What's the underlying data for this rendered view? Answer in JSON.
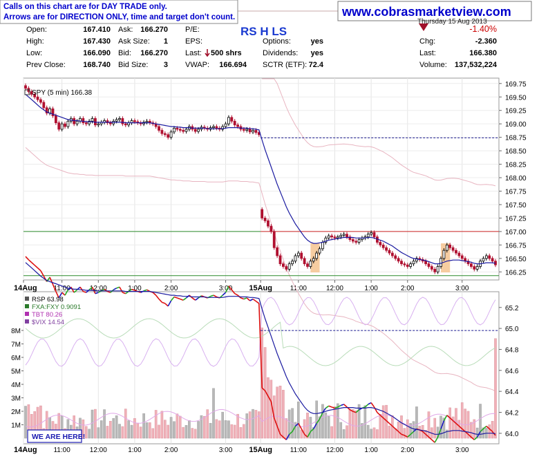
{
  "notice": {
    "line1": "Calls on this chart are for DAY TRADE only.",
    "line2": "Arrows are for DIRECTION ONLY, time and target don't count."
  },
  "website": "www.cobrasmarketview.com",
  "symbol_header": "RS H LS",
  "date_fragment": "Thursday 15 Aug 2013",
  "quote": {
    "open_label": "Open:",
    "open": "167.410",
    "high_label": "High:",
    "high": "167.430",
    "low_label": "Low:",
    "low": "166.090",
    "prev_close_label": "Prev Close:",
    "prev_close": "168.740",
    "ask_label": "Ask:",
    "ask": "166.270",
    "ask_size_label": "Ask Size:",
    "ask_size": "1",
    "bid_label": "Bid:",
    "bid": "166.270",
    "bid_size_label": "Bid Size:",
    "bid_size": "3",
    "pe_label": "P/E:",
    "pe": "",
    "eps_label": "EPS:",
    "eps": "",
    "last_label": "Last:",
    "last_shares": "500 shrs",
    "vwap_label": "VWAP:",
    "vwap": "166.694",
    "options_label": "Options:",
    "options": "yes",
    "dividends_label": "Dividends:",
    "dividends": "yes",
    "sctr_label": "SCTR (ETF):",
    "sctr": "72.4",
    "pct_change": "-1.40%",
    "chg_label": "Chg:",
    "chg": "-2.360",
    "last2_label": "Last:",
    "last2": "166.380",
    "volume_label": "Volume:",
    "volume": "137,532,224"
  },
  "colors": {
    "down_arrow": "#a0102a",
    "up_candle": "#000000",
    "down_candle": "#b01030",
    "ma": "#1a1aa0",
    "band": "#e8b4c0",
    "green_line": "#2a8a2a",
    "red_line": "#cc2222",
    "highlight": "#f5c08a"
  },
  "chart_data": [
    {
      "type": "candlestick",
      "legend": "SPY (5 min) 166.38",
      "interval": "5 min",
      "x_labels": [
        "14Aug",
        "11:00",
        "12:00",
        "1:00",
        "2:00",
        "3:00",
        "15Aug",
        "11:00",
        "12:00",
        "1:00",
        "2:00",
        "3:00"
      ],
      "y_ticks": [
        "169.75",
        "169.50",
        "169.25",
        "169.00",
        "168.75",
        "168.50",
        "168.25",
        "168.00",
        "167.75",
        "167.50",
        "167.25",
        "167.00",
        "166.75",
        "166.50",
        "166.25"
      ],
      "ylim": [
        166.1,
        169.85
      ],
      "session_break_index": 78,
      "close": [
        169.66,
        169.6,
        169.55,
        169.5,
        169.45,
        169.4,
        169.3,
        169.2,
        169.28,
        169.15,
        169.02,
        168.9,
        169.0,
        168.95,
        169.05,
        169.1,
        169.0,
        169.05,
        169.1,
        169.02,
        169.0,
        169.05,
        169.1,
        168.98,
        169.0,
        169.03,
        169.06,
        169.02,
        169.0,
        169.05,
        169.08,
        169.1,
        169.0,
        168.98,
        169.02,
        169.06,
        169.04,
        169.02,
        169.0,
        169.03,
        169.05,
        169.02,
        169.0,
        168.95,
        168.88,
        168.82,
        168.8,
        168.75,
        168.85,
        168.92,
        168.9,
        168.88,
        168.86,
        168.9,
        168.95,
        168.9,
        168.86,
        168.9,
        168.94,
        168.92,
        168.9,
        168.93,
        168.95,
        168.92,
        168.9,
        168.95,
        169.0,
        169.12,
        169.05,
        168.98,
        168.95,
        168.9,
        168.88,
        168.9,
        168.85,
        168.88,
        168.84,
        168.8,
        167.25,
        167.2,
        167.1,
        167.0,
        166.7,
        166.55,
        166.4,
        166.35,
        166.3,
        166.4,
        166.45,
        166.55,
        166.6,
        166.5,
        166.4,
        166.35,
        166.45,
        166.5,
        166.6,
        166.68,
        166.8,
        166.88,
        166.92,
        166.9,
        166.88,
        166.9,
        166.93,
        166.95,
        166.9,
        166.85,
        166.82,
        166.8,
        166.85,
        166.88,
        166.9,
        166.95,
        166.98,
        166.9,
        166.8,
        166.75,
        166.7,
        166.65,
        166.6,
        166.55,
        166.5,
        166.45,
        166.4,
        166.38,
        166.35,
        166.4,
        166.45,
        166.5,
        166.48,
        166.45,
        166.4,
        166.35,
        166.3,
        166.25,
        166.35,
        166.5,
        166.65,
        166.75,
        166.7,
        166.65,
        166.6,
        166.55,
        166.5,
        166.45,
        166.4,
        166.35,
        166.3,
        166.35,
        166.45,
        166.5,
        166.55,
        166.5,
        166.45,
        166.38
      ],
      "moving_average": [
        169.55,
        169.5,
        169.45,
        169.4,
        169.35,
        169.3,
        169.26,
        169.22,
        169.2,
        169.18,
        169.16,
        169.14,
        169.12,
        169.1,
        169.08,
        169.07,
        169.06,
        169.06,
        169.05,
        169.05,
        169.04,
        169.04,
        169.04,
        169.03,
        169.03,
        169.03,
        169.03,
        169.03,
        169.03,
        169.03,
        169.03,
        169.03,
        169.03,
        169.02,
        169.02,
        169.02,
        169.02,
        169.02,
        169.02,
        169.02,
        169.02,
        169.02,
        169.01,
        169.0,
        168.99,
        168.98,
        168.97,
        168.96,
        168.95,
        168.95,
        168.94,
        168.94,
        168.93,
        168.93,
        168.93,
        168.92,
        168.92,
        168.92,
        168.92,
        168.92,
        168.91,
        168.91,
        168.91,
        168.91,
        168.91,
        168.91,
        168.92,
        168.93,
        168.93,
        168.93,
        168.93,
        168.92,
        168.92,
        168.92,
        168.91,
        168.91,
        168.9,
        168.89,
        168.7,
        168.52,
        168.36,
        168.2,
        168.04,
        167.88,
        167.74,
        167.6,
        167.46,
        167.34,
        167.24,
        167.14,
        167.06,
        166.98,
        166.9,
        166.84,
        166.8,
        166.78,
        166.78,
        166.79,
        166.8,
        166.82,
        166.84,
        166.85,
        166.86,
        166.87,
        166.88,
        166.89,
        166.89,
        166.89,
        166.89,
        166.88,
        166.88,
        166.88,
        166.88,
        166.89,
        166.89,
        166.88,
        166.86,
        166.84,
        166.82,
        166.79,
        166.76,
        166.73,
        166.69,
        166.65,
        166.61,
        166.58,
        166.55,
        166.52,
        166.5,
        166.49,
        166.48,
        166.47,
        166.46,
        166.44,
        166.42,
        166.4,
        166.4,
        166.41,
        166.43,
        166.45,
        166.46,
        166.47,
        166.47,
        166.47,
        166.46,
        166.45,
        166.44,
        166.43,
        166.41,
        166.4,
        166.4,
        166.41,
        166.42,
        166.42,
        166.42,
        166.41
      ],
      "reference_lines": {
        "prev_close": 168.74,
        "resistance": 167.0,
        "support": 166.18
      },
      "highlights": [
        [
          94,
          97
        ],
        [
          137,
          140
        ]
      ]
    },
    {
      "type": "line",
      "legend": [
        "RSP 63.98",
        "FXA:FXY 0.9091",
        "TBT 80.26",
        "$VIX 14.54"
      ],
      "y_ticks": [
        "65.2",
        "65.0",
        "64.8",
        "64.6",
        "64.4",
        "64.2",
        "64.0"
      ],
      "ylim": [
        63.9,
        65.35
      ],
      "volume_ticks": [
        "8M",
        "7M",
        "6M",
        "5M",
        "4M",
        "3M",
        "2M",
        "1M"
      ],
      "volume_unit": "M",
      "x_labels": [
        "14Aug",
        "11:00",
        "12:00",
        "1:00",
        "2:00",
        "3:00",
        "15Aug",
        "11:00",
        "12:00",
        "1:00",
        "2:00",
        "3:00"
      ],
      "reference_line": 64.98,
      "callout": "WE ARE HERE!"
    }
  ]
}
